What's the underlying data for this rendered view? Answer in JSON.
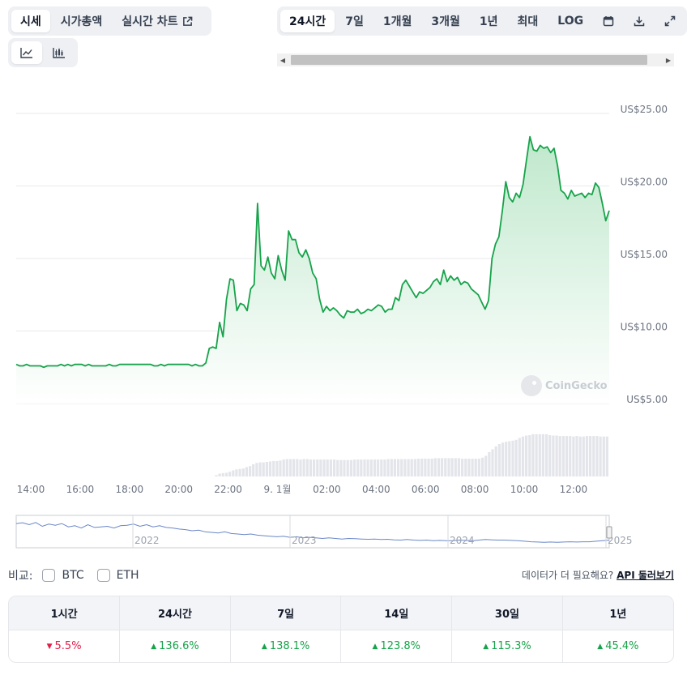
{
  "tabs": [
    {
      "label": "시세",
      "active": true
    },
    {
      "label": "시가총액",
      "active": false
    },
    {
      "label": "실시간 차트",
      "active": false,
      "icon": "external-link-icon"
    }
  ],
  "chart_types": [
    {
      "icon": "line-chart-icon",
      "active": true
    },
    {
      "icon": "candlestick-chart-icon",
      "active": false
    }
  ],
  "ranges": [
    {
      "label": "24시간",
      "active": true
    },
    {
      "label": "7일"
    },
    {
      "label": "1개월"
    },
    {
      "label": "3개월"
    },
    {
      "label": "1년"
    },
    {
      "label": "최대"
    },
    {
      "label": "LOG"
    }
  ],
  "range_icons": [
    "calendar-icon",
    "download-icon",
    "expand-icon"
  ],
  "watermark": "CoinGecko",
  "chart_data": {
    "type": "area",
    "y_tick_labels": [
      "US$25.00",
      "US$20.00",
      "US$15.00",
      "US$10.00",
      "US$5.00"
    ],
    "y_ticks": [
      25,
      20,
      15,
      10,
      5
    ],
    "ylim": [
      5,
      25
    ],
    "x_tick_labels": [
      "14:00",
      "16:00",
      "18:00",
      "20:00",
      "22:00",
      "9. 1월",
      "02:00",
      "04:00",
      "06:00",
      "08:00",
      "10:00",
      "12:00"
    ],
    "series": [
      {
        "values": [
          7.7,
          7.6,
          7.6,
          7.7,
          7.6,
          7.6,
          7.6,
          7.6,
          7.5,
          7.6,
          7.6,
          7.6,
          7.6,
          7.7,
          7.6,
          7.7,
          7.6,
          7.7,
          7.7,
          7.7,
          7.6,
          7.7,
          7.6,
          7.6,
          7.6,
          7.6,
          7.6,
          7.7,
          7.6,
          7.6,
          7.7,
          7.7,
          7.7,
          7.7,
          7.7,
          7.7,
          7.7,
          7.7,
          7.7,
          7.7,
          7.6,
          7.6,
          7.7,
          7.6,
          7.7,
          7.7,
          7.7,
          7.7,
          7.7,
          7.7,
          7.7,
          7.6,
          7.7,
          7.6,
          7.6,
          7.8,
          8.8,
          8.9,
          8.8,
          10.6,
          9.6,
          12.2,
          13.6,
          13.5,
          11.4,
          11.9,
          11.8,
          11.4,
          12.9,
          13.2,
          18.8,
          14.5,
          14.2,
          15.1,
          14.0,
          13.6,
          15.2,
          14.2,
          13.5,
          16.9,
          16.3,
          16.3,
          15.4,
          15.1,
          15.6,
          15.0,
          14.0,
          13.6,
          12.2,
          11.3,
          11.7,
          11.4,
          11.6,
          11.4,
          11.1,
          10.9,
          11.4,
          11.3,
          11.3,
          11.5,
          11.2,
          11.3,
          11.5,
          11.4,
          11.6,
          11.8,
          11.7,
          11.3,
          11.5,
          11.5,
          12.3,
          12.1,
          13.2,
          13.5,
          13.1,
          12.7,
          12.3,
          12.7,
          12.6,
          12.8,
          13.0,
          13.4,
          13.6,
          13.2,
          14.2,
          13.4,
          13.8,
          13.5,
          13.7,
          13.2,
          13.4,
          13.3,
          12.9,
          12.7,
          12.5,
          12.0,
          11.5,
          12.1,
          15.0,
          16.0,
          16.5,
          18.3,
          20.3,
          19.2,
          18.9,
          19.5,
          19.2,
          20.1,
          21.8,
          23.4,
          22.5,
          22.4,
          22.8,
          22.6,
          22.7,
          22.3,
          22.6,
          21.4,
          19.7,
          19.5,
          19.1,
          19.7,
          19.3,
          19.4,
          19.5,
          19.2,
          19.5,
          19.4,
          20.2,
          19.9,
          18.8,
          17.6,
          18.3
        ]
      }
    ],
    "volume": [
      0,
      0,
      0,
      0,
      0,
      0,
      0,
      0,
      0,
      0,
      0,
      0,
      0,
      0,
      0,
      0,
      0,
      0,
      0,
      0,
      0,
      0,
      0,
      0,
      0,
      0,
      0,
      0,
      0,
      0,
      0,
      0,
      0,
      0,
      0,
      0,
      0,
      0,
      0,
      0,
      0,
      0,
      0,
      0,
      0,
      0,
      0,
      0,
      0,
      0,
      0,
      0,
      0,
      0,
      0,
      0,
      0,
      0,
      0,
      0.03,
      0.06,
      0.07,
      0.08,
      0.1,
      0.13,
      0.15,
      0.16,
      0.17,
      0.2,
      0.22,
      0.26,
      0.29,
      0.3,
      0.3,
      0.31,
      0.32,
      0.33,
      0.33,
      0.34,
      0.36,
      0.37,
      0.37,
      0.37,
      0.37,
      0.36,
      0.37,
      0.37,
      0.36,
      0.36,
      0.36,
      0.36,
      0.36,
      0.36,
      0.36,
      0.36,
      0.35,
      0.35,
      0.35,
      0.35,
      0.35,
      0.36,
      0.36,
      0.36,
      0.36,
      0.36,
      0.36,
      0.36,
      0.36,
      0.36,
      0.36,
      0.37,
      0.37,
      0.37,
      0.37,
      0.37,
      0.37,
      0.37,
      0.37,
      0.37,
      0.38,
      0.38,
      0.38,
      0.38,
      0.38,
      0.39,
      0.39,
      0.39,
      0.39,
      0.39,
      0.39,
      0.39,
      0.39,
      0.38,
      0.38,
      0.38,
      0.38,
      0.38,
      0.38,
      0.4,
      0.44,
      0.52,
      0.58,
      0.64,
      0.69,
      0.72,
      0.74,
      0.75,
      0.76,
      0.78,
      0.82,
      0.85,
      0.87,
      0.88,
      0.9,
      0.9,
      0.9,
      0.9,
      0.9,
      0.88,
      0.87,
      0.87,
      0.86,
      0.86,
      0.86,
      0.86,
      0.85,
      0.86,
      0.85,
      0.85,
      0.86,
      0.86,
      0.86,
      0.86,
      0.85,
      0.85,
      0.85
    ],
    "navigator_tick_labels": [
      "2022",
      "2023",
      "2024",
      "2025"
    ],
    "navigator_values": [
      0.82,
      0.85,
      0.78,
      0.86,
      0.72,
      0.8,
      0.76,
      0.82,
      0.7,
      0.74,
      0.66,
      0.78,
      0.68,
      0.7,
      0.72,
      0.66,
      0.74,
      0.76,
      0.8,
      0.72,
      0.78,
      0.7,
      0.74,
      0.68,
      0.66,
      0.62,
      0.6,
      0.56,
      0.58,
      0.52,
      0.5,
      0.48,
      0.52,
      0.46,
      0.44,
      0.42,
      0.44,
      0.4,
      0.38,
      0.36,
      0.34,
      0.36,
      0.32,
      0.34,
      0.3,
      0.32,
      0.3,
      0.28,
      0.3,
      0.28,
      0.26,
      0.28,
      0.27,
      0.26,
      0.25,
      0.26,
      0.24,
      0.25,
      0.23,
      0.22,
      0.24,
      0.22,
      0.21,
      0.22,
      0.2,
      0.21,
      0.2,
      0.2,
      0.22,
      0.21,
      0.2,
      0.22,
      0.24,
      0.23,
      0.22,
      0.22,
      0.21,
      0.2,
      0.18,
      0.16,
      0.15,
      0.14,
      0.15,
      0.14,
      0.15,
      0.16,
      0.15,
      0.16,
      0.16,
      0.18,
      0.2,
      0.22
    ]
  },
  "compare": {
    "label": "비교:",
    "options": [
      {
        "label": "BTC"
      },
      {
        "label": "ETH"
      }
    ]
  },
  "api_prompt": {
    "text": "데이터가 더 필요해요?",
    "link": "API 둘러보기"
  },
  "performance": [
    {
      "period": "1시간",
      "change": "5.5%",
      "direction": "down"
    },
    {
      "period": "24시간",
      "change": "136.6%",
      "direction": "up"
    },
    {
      "period": "7일",
      "change": "138.1%",
      "direction": "up"
    },
    {
      "period": "14일",
      "change": "123.8%",
      "direction": "up"
    },
    {
      "period": "30일",
      "change": "115.3%",
      "direction": "up"
    },
    {
      "period": "1년",
      "change": "45.4%",
      "direction": "up"
    }
  ],
  "colors": {
    "line": "#16a34a",
    "area_top": "#bfe8cc",
    "up": "#16a34a",
    "down": "#e11d48",
    "navigator_line": "#6a87c8"
  }
}
